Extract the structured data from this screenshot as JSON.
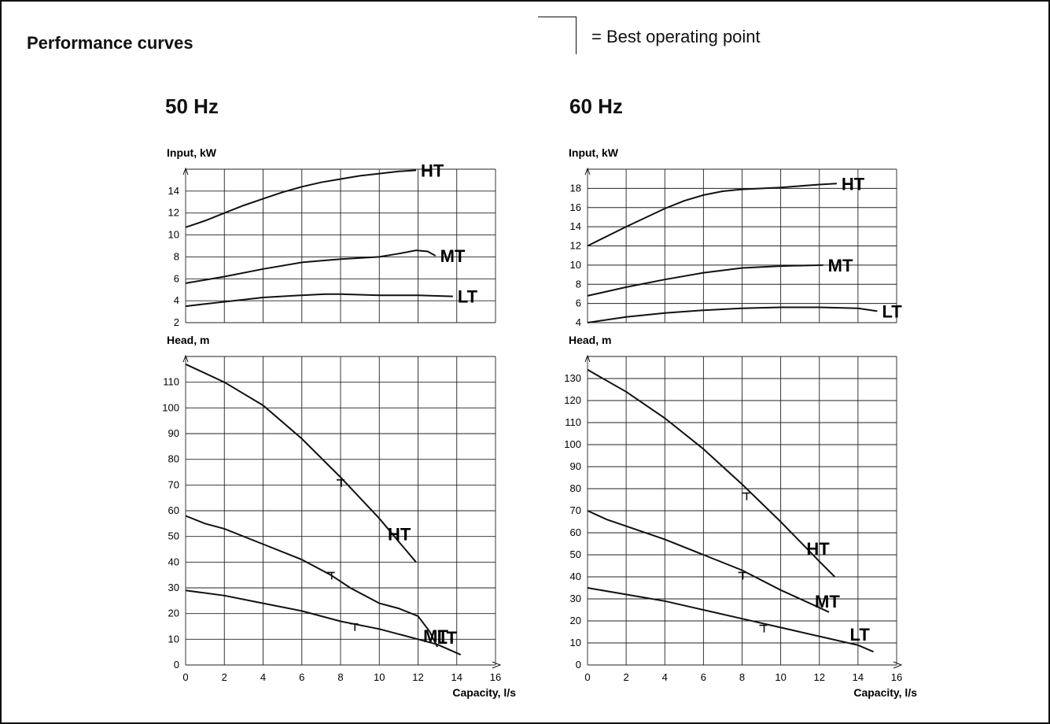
{
  "title": "Performance curves",
  "legend": {
    "text": "= Best operating point"
  },
  "freq_labels": [
    "50 Hz",
    "60 Hz"
  ],
  "chart_data": [
    {
      "type": "line",
      "title": "50 Hz",
      "xlabel": "Capacity, l/s",
      "xlim": [
        0,
        16
      ],
      "xticks": [
        0,
        2,
        4,
        6,
        8,
        10,
        12,
        14,
        16
      ],
      "grid": true,
      "panels": [
        {
          "ylabel": "Input, kW",
          "ylim": [
            2,
            16
          ],
          "yticks": [
            2,
            4,
            6,
            8,
            10,
            12,
            14
          ],
          "series": [
            {
              "name": "HT",
              "points": [
                [
                  0,
                  10.7
                ],
                [
                  1,
                  11.3
                ],
                [
                  2,
                  12.0
                ],
                [
                  3,
                  12.7
                ],
                [
                  4,
                  13.3
                ],
                [
                  5,
                  13.9
                ],
                [
                  6,
                  14.4
                ],
                [
                  7,
                  14.8
                ],
                [
                  8,
                  15.1
                ],
                [
                  9,
                  15.4
                ],
                [
                  10,
                  15.6
                ],
                [
                  11,
                  15.8
                ],
                [
                  11.9,
                  15.9
                ]
              ]
            },
            {
              "name": "MT",
              "points": [
                [
                  0,
                  5.6
                ],
                [
                  2,
                  6.2
                ],
                [
                  4,
                  6.9
                ],
                [
                  6,
                  7.5
                ],
                [
                  8,
                  7.8
                ],
                [
                  10,
                  8.0
                ],
                [
                  11,
                  8.3
                ],
                [
                  11.9,
                  8.6
                ],
                [
                  12.5,
                  8.5
                ],
                [
                  12.9,
                  8.1
                ]
              ]
            },
            {
              "name": "LT",
              "points": [
                [
                  0,
                  3.5
                ],
                [
                  2,
                  3.9
                ],
                [
                  4,
                  4.3
                ],
                [
                  6,
                  4.5
                ],
                [
                  7.2,
                  4.6
                ],
                [
                  8,
                  4.6
                ],
                [
                  10,
                  4.5
                ],
                [
                  12,
                  4.5
                ],
                [
                  13.8,
                  4.4
                ]
              ]
            }
          ]
        },
        {
          "ylabel": "Head, m",
          "ylim": [
            0,
            120
          ],
          "yticks": [
            0,
            10,
            20,
            30,
            40,
            50,
            60,
            70,
            80,
            90,
            100,
            110
          ],
          "series": [
            {
              "name": "HT",
              "points": [
                [
                  0,
                  117
                ],
                [
                  2,
                  110
                ],
                [
                  4,
                  101
                ],
                [
                  6,
                  88
                ],
                [
                  8,
                  73
                ],
                [
                  10,
                  57
                ],
                [
                  11,
                  48
                ],
                [
                  11.9,
                  40
                ]
              ]
            },
            {
              "name": "MT",
              "points": [
                [
                  0,
                  58
                ],
                [
                  1,
                  55
                ],
                [
                  2,
                  53
                ],
                [
                  4,
                  47
                ],
                [
                  6,
                  41
                ],
                [
                  7.5,
                  35
                ],
                [
                  8.5,
                  30
                ],
                [
                  10,
                  24
                ],
                [
                  11,
                  22
                ],
                [
                  12,
                  19
                ],
                [
                  12.6,
                  13
                ],
                [
                  13,
                  7
                ]
              ]
            },
            {
              "name": "LT",
              "points": [
                [
                  0,
                  29
                ],
                [
                  2,
                  27
                ],
                [
                  4,
                  24
                ],
                [
                  6,
                  21
                ],
                [
                  8,
                  17
                ],
                [
                  10,
                  14
                ],
                [
                  12,
                  10
                ],
                [
                  13,
                  8
                ],
                [
                  14.2,
                  4
                ]
              ]
            }
          ],
          "best_operating_points": [
            {
              "series": "HT",
              "x": 8.0,
              "y": 72
            },
            {
              "series": "MT",
              "x": 7.5,
              "y": 36
            },
            {
              "series": "LT",
              "x": 8.7,
              "y": 16
            }
          ]
        }
      ]
    },
    {
      "type": "line",
      "title": "60 Hz",
      "xlabel": "Capacity, l/s",
      "xlim": [
        0,
        16
      ],
      "xticks": [
        0,
        2,
        4,
        6,
        8,
        10,
        12,
        14,
        16
      ],
      "grid": true,
      "panels": [
        {
          "ylabel": "Input, kW",
          "ylim": [
            4,
            20
          ],
          "yticks": [
            4,
            6,
            8,
            10,
            12,
            14,
            16,
            18
          ],
          "series": [
            {
              "name": "HT",
              "points": [
                [
                  0,
                  12.0
                ],
                [
                  2,
                  14.0
                ],
                [
                  4,
                  15.9
                ],
                [
                  5,
                  16.7
                ],
                [
                  6,
                  17.3
                ],
                [
                  7,
                  17.7
                ],
                [
                  8,
                  17.9
                ],
                [
                  10,
                  18.1
                ],
                [
                  12,
                  18.4
                ],
                [
                  12.9,
                  18.5
                ]
              ]
            },
            {
              "name": "MT",
              "points": [
                [
                  0,
                  6.8
                ],
                [
                  2,
                  7.7
                ],
                [
                  4,
                  8.5
                ],
                [
                  6,
                  9.2
                ],
                [
                  8,
                  9.7
                ],
                [
                  10,
                  9.9
                ],
                [
                  12.2,
                  10.0
                ]
              ]
            },
            {
              "name": "LT",
              "points": [
                [
                  0,
                  4.0
                ],
                [
                  2,
                  4.6
                ],
                [
                  4,
                  5.0
                ],
                [
                  6,
                  5.3
                ],
                [
                  8,
                  5.5
                ],
                [
                  10,
                  5.6
                ],
                [
                  12,
                  5.6
                ],
                [
                  14,
                  5.5
                ],
                [
                  15,
                  5.2
                ]
              ]
            }
          ]
        },
        {
          "ylabel": "Head, m",
          "ylim": [
            0,
            140
          ],
          "yticks": [
            0,
            10,
            20,
            30,
            40,
            50,
            60,
            70,
            80,
            90,
            100,
            110,
            120,
            130
          ],
          "series": [
            {
              "name": "HT",
              "points": [
                [
                  0,
                  134
                ],
                [
                  2,
                  124
                ],
                [
                  4,
                  112
                ],
                [
                  6,
                  98
                ],
                [
                  8,
                  82
                ],
                [
                  10,
                  65
                ],
                [
                  12,
                  47
                ],
                [
                  12.8,
                  40
                ]
              ]
            },
            {
              "name": "MT",
              "points": [
                [
                  0,
                  70
                ],
                [
                  1,
                  66
                ],
                [
                  2,
                  63
                ],
                [
                  4,
                  57
                ],
                [
                  6,
                  50
                ],
                [
                  8,
                  43
                ],
                [
                  10,
                  34
                ],
                [
                  12,
                  26
                ],
                [
                  12.5,
                  24
                ]
              ]
            },
            {
              "name": "LT",
              "points": [
                [
                  0,
                  35
                ],
                [
                  2,
                  32
                ],
                [
                  4,
                  29
                ],
                [
                  6,
                  25
                ],
                [
                  8,
                  21
                ],
                [
                  10,
                  17
                ],
                [
                  12,
                  13
                ],
                [
                  14,
                  9
                ],
                [
                  14.8,
                  6
                ]
              ]
            }
          ],
          "best_operating_points": [
            {
              "series": "HT",
              "x": 8.2,
              "y": 78
            },
            {
              "series": "MT",
              "x": 8.0,
              "y": 42
            },
            {
              "series": "LT",
              "x": 9.1,
              "y": 18
            }
          ]
        }
      ]
    }
  ]
}
